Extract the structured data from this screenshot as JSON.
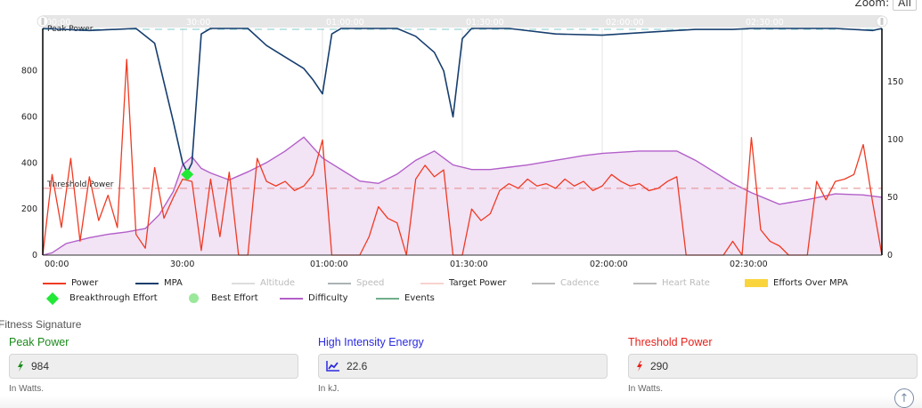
{
  "zoom": {
    "label": "Zoom:",
    "button": "All"
  },
  "chart_data": {
    "type": "line",
    "title": "",
    "x_unit": "elapsed time",
    "x_ticks": [
      "00:00",
      "30:00",
      "01:00:00",
      "01:30:00",
      "02:00:00",
      "02:30:00"
    ],
    "navigator_ticks": [
      "00:00",
      "30:00",
      "01:00:00",
      "01:30:00",
      "02:00:00",
      "02:30:00"
    ],
    "y_left": {
      "ticks": [
        0,
        200,
        400,
        600,
        800
      ],
      "range": [
        0,
        984
      ]
    },
    "y_right": {
      "ticks": [
        0,
        50,
        100,
        150
      ],
      "range": [
        0,
        196
      ]
    },
    "plot_lines": [
      {
        "label": "Peak Power",
        "value": 984,
        "color": "#7fc9cc"
      },
      {
        "label": "Threshold Power",
        "value": 290,
        "color": "#e6888a"
      }
    ],
    "series": [
      {
        "name": "Power",
        "color": "#f03a22",
        "axis": "left",
        "x_min": [
          0,
          2,
          4,
          6,
          8,
          10,
          12,
          14,
          16,
          18,
          20,
          22,
          24,
          26,
          28,
          30,
          32,
          34,
          36,
          38,
          40,
          42,
          44,
          46,
          48,
          50,
          52,
          54,
          56,
          58,
          60,
          62,
          64,
          66,
          68,
          70,
          72,
          74,
          76,
          78,
          80,
          82,
          84,
          86,
          88,
          90,
          92,
          94,
          96,
          98,
          100,
          102,
          104,
          106,
          108,
          110,
          112,
          114,
          116,
          118,
          120,
          122,
          124,
          126,
          128,
          130,
          132,
          134,
          136,
          138,
          140,
          142,
          144,
          146,
          148,
          150,
          152,
          154,
          156,
          158,
          160,
          162,
          164,
          166,
          168,
          170,
          172,
          174,
          176,
          178,
          180
        ],
        "values": [
          0,
          350,
          120,
          420,
          60,
          340,
          150,
          260,
          120,
          850,
          90,
          30,
          380,
          160,
          250,
          330,
          320,
          20,
          330,
          80,
          360,
          0,
          0,
          420,
          320,
          300,
          320,
          280,
          300,
          350,
          500,
          0,
          0,
          0,
          0,
          80,
          210,
          160,
          140,
          0,
          330,
          390,
          340,
          370,
          0,
          0,
          200,
          150,
          180,
          280,
          310,
          290,
          330,
          300,
          310,
          290,
          330,
          300,
          320,
          280,
          300,
          350,
          320,
          300,
          310,
          280,
          290,
          320,
          340,
          0,
          0,
          0,
          0,
          0,
          60,
          0,
          510,
          110,
          60,
          40,
          0,
          0,
          0,
          320,
          240,
          320,
          330,
          350,
          480,
          230,
          0
        ]
      },
      {
        "name": "MPA",
        "color": "#163e6e",
        "axis": "left",
        "x_min": [
          0,
          10,
          20,
          24,
          26,
          28,
          30,
          31,
          32,
          34,
          36,
          40,
          44,
          48,
          52,
          56,
          58,
          60,
          62,
          64,
          66,
          68,
          70,
          76,
          80,
          84,
          86,
          88,
          90,
          92,
          94,
          100,
          110,
          120,
          130,
          140,
          148,
          152,
          160,
          170,
          178,
          180
        ],
        "values": [
          984,
          975,
          984,
          920,
          750,
          580,
          400,
          360,
          400,
          960,
          984,
          984,
          984,
          910,
          860,
          810,
          760,
          700,
          960,
          984,
          984,
          984,
          984,
          984,
          950,
          880,
          800,
          600,
          940,
          984,
          984,
          984,
          960,
          955,
          968,
          980,
          980,
          984,
          984,
          984,
          975,
          984
        ]
      },
      {
        "name": "Difficulty",
        "color": "#b35fc9",
        "axis": "right",
        "x_min": [
          0,
          2,
          5,
          10,
          14,
          18,
          22,
          25,
          28,
          30,
          32,
          34,
          36,
          40,
          44,
          48,
          52,
          56,
          60,
          64,
          68,
          72,
          76,
          80,
          84,
          88,
          92,
          96,
          100,
          104,
          110,
          116,
          120,
          128,
          136,
          140,
          144,
          148,
          152,
          158,
          164,
          170,
          176,
          180
        ],
        "values": [
          0,
          2,
          10,
          15,
          18,
          20,
          23,
          35,
          55,
          78,
          85,
          75,
          71,
          65,
          72,
          80,
          90,
          102,
          84,
          74,
          64,
          62,
          70,
          82,
          90,
          78,
          74,
          74,
          76,
          78,
          82,
          86,
          88,
          90,
          90,
          82,
          72,
          62,
          54,
          44,
          48,
          53,
          52,
          50
        ]
      }
    ],
    "markers": [
      {
        "name": "Breakthrough Effort",
        "x_label": "~31:00",
        "value": 350,
        "color": "#22e836",
        "shape": "diamond"
      }
    ],
    "legend": [
      {
        "label": "Power",
        "color": "#f03a22",
        "type": "line",
        "enabled": true
      },
      {
        "label": "MPA",
        "color": "#163e6e",
        "type": "line",
        "enabled": true
      },
      {
        "label": "Altitude",
        "color": "#dddddd",
        "type": "line",
        "enabled": false
      },
      {
        "label": "Speed",
        "color": "#aab3b3",
        "type": "line",
        "enabled": false
      },
      {
        "label": "Target Power",
        "color": "#f8d3cf",
        "type": "line",
        "enabled": true
      },
      {
        "label": "Cadence",
        "color": "#bbbbbb",
        "type": "line",
        "enabled": false
      },
      {
        "label": "Heart Rate",
        "color": "#bbbbbb",
        "type": "line",
        "enabled": false
      },
      {
        "label": "Efforts Over MPA",
        "color": "#f9d43c",
        "type": "area",
        "enabled": true
      },
      {
        "label": "Breakthrough Effort",
        "color": "#22e836",
        "type": "diamond",
        "enabled": true
      },
      {
        "label": "Best Effort",
        "color": "#9be89b",
        "type": "circle",
        "enabled": true
      },
      {
        "label": "Difficulty",
        "color": "#b35fc9",
        "type": "line",
        "enabled": true
      },
      {
        "label": "Events",
        "color": "#6fae8a",
        "type": "line",
        "enabled": true
      }
    ]
  },
  "fitness": {
    "title": "Fitness Signature",
    "cards": [
      {
        "label": "Peak Power",
        "value": "984",
        "hint": "In Watts.",
        "icon": "bolt-icon",
        "color": "#1a8a1a"
      },
      {
        "label": "High Intensity Energy",
        "value": "22.6",
        "hint": "In kJ.",
        "icon": "trend-chart-icon",
        "color": "#2a2ae0"
      },
      {
        "label": "Threshold Power",
        "value": "290",
        "hint": "In Watts.",
        "icon": "bolt-icon",
        "color": "#e8201a"
      }
    ]
  },
  "scroll_top": {
    "icon": "↑"
  }
}
